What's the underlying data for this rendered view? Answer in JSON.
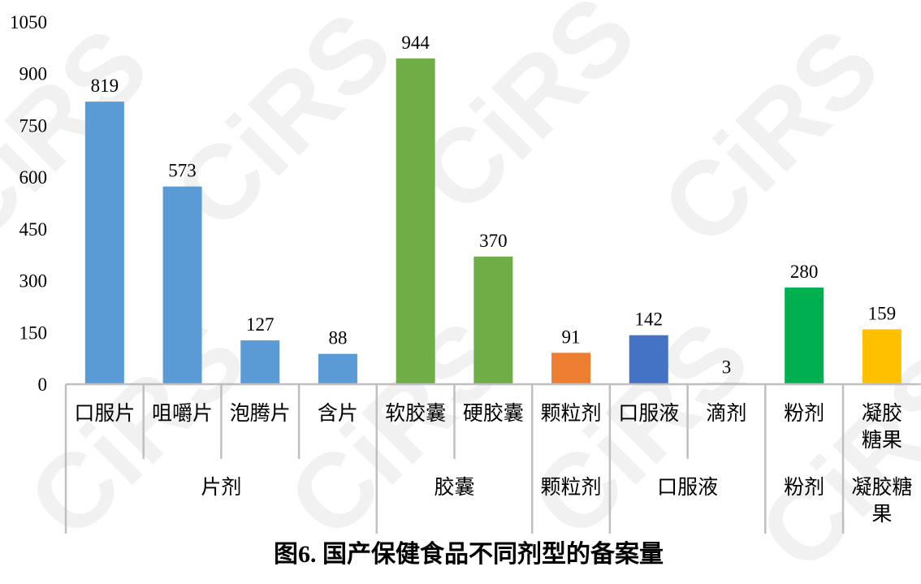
{
  "watermark": "CiRS",
  "chart_data": {
    "type": "bar",
    "title": "图6. 国产保健食品不同剂型的备案量",
    "xlabel": "",
    "ylabel": "",
    "ylim": [
      0,
      1050
    ],
    "yticks": [
      "0",
      "150",
      "300",
      "450",
      "600",
      "750",
      "900",
      "1050"
    ],
    "grid": false,
    "categories": [
      "口服片",
      "咀嚼片",
      "泡腾片",
      "含片",
      "软胶囊",
      "硬胶囊",
      "颗粒剂",
      "口服液",
      "滴剂",
      "粉剂",
      "凝胶糖果"
    ],
    "values": [
      819,
      573,
      127,
      88,
      944,
      370,
      91,
      142,
      3,
      280,
      159
    ],
    "colors": [
      "#5B9BD5",
      "#5B9BD5",
      "#5B9BD5",
      "#5B9BD5",
      "#70AD47",
      "#70AD47",
      "#ED7D31",
      "#4472C4",
      "#4472C4",
      "#00B050",
      "#FFC000"
    ],
    "groups": [
      {
        "label": "片剂",
        "count": 4
      },
      {
        "label": "胶囊",
        "count": 2
      },
      {
        "label": "颗粒剂",
        "count": 1
      },
      {
        "label": "口服液",
        "count": 2
      },
      {
        "label": "粉剂",
        "count": 1
      },
      {
        "label": "凝胶糖果",
        "count": 1
      }
    ]
  }
}
